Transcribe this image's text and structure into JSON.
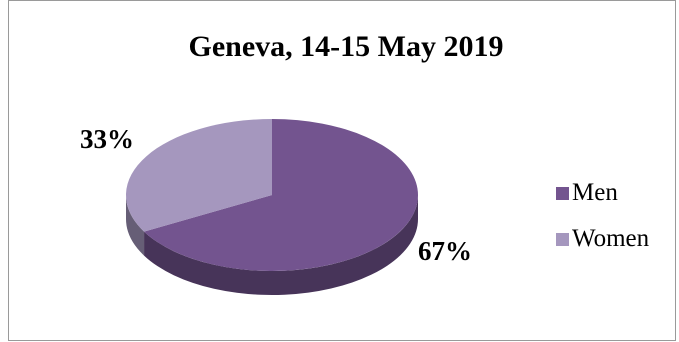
{
  "chart_data": {
    "type": "pie",
    "title": "Geneva, 14-15 May 2019",
    "categories": [
      "Men",
      "Women"
    ],
    "values": [
      67,
      33
    ],
    "labels": [
      "67%",
      "33%"
    ],
    "colors": [
      "#73548f",
      "#a597be"
    ],
    "legend_position": "right"
  }
}
